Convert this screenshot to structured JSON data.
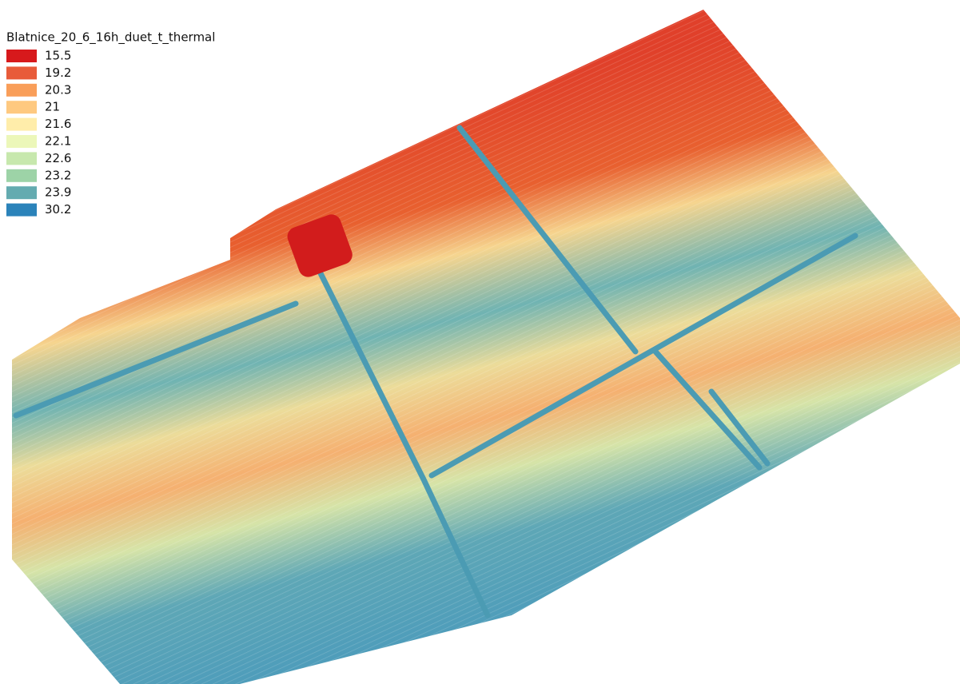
{
  "legend": {
    "title": "Blatnice_20_6_16h_duet_t_thermal",
    "items": [
      {
        "value": 15.5,
        "color": "#d7191c"
      },
      {
        "value": 19.2,
        "color": "#e85b3a"
      },
      {
        "value": 20.3,
        "color": "#f99e59"
      },
      {
        "value": 21,
        "color": "#fec980"
      },
      {
        "value": 21.6,
        "color": "#ffedaa"
      },
      {
        "value": 22.1,
        "color": "#ecf7b9"
      },
      {
        "value": 22.6,
        "color": "#c7e8ad"
      },
      {
        "value": 23.2,
        "color": "#9dd3a7"
      },
      {
        "value": 23.9,
        "color": "#64abb0"
      },
      {
        "value": 30.2,
        "color": "#2b83ba"
      }
    ]
  }
}
